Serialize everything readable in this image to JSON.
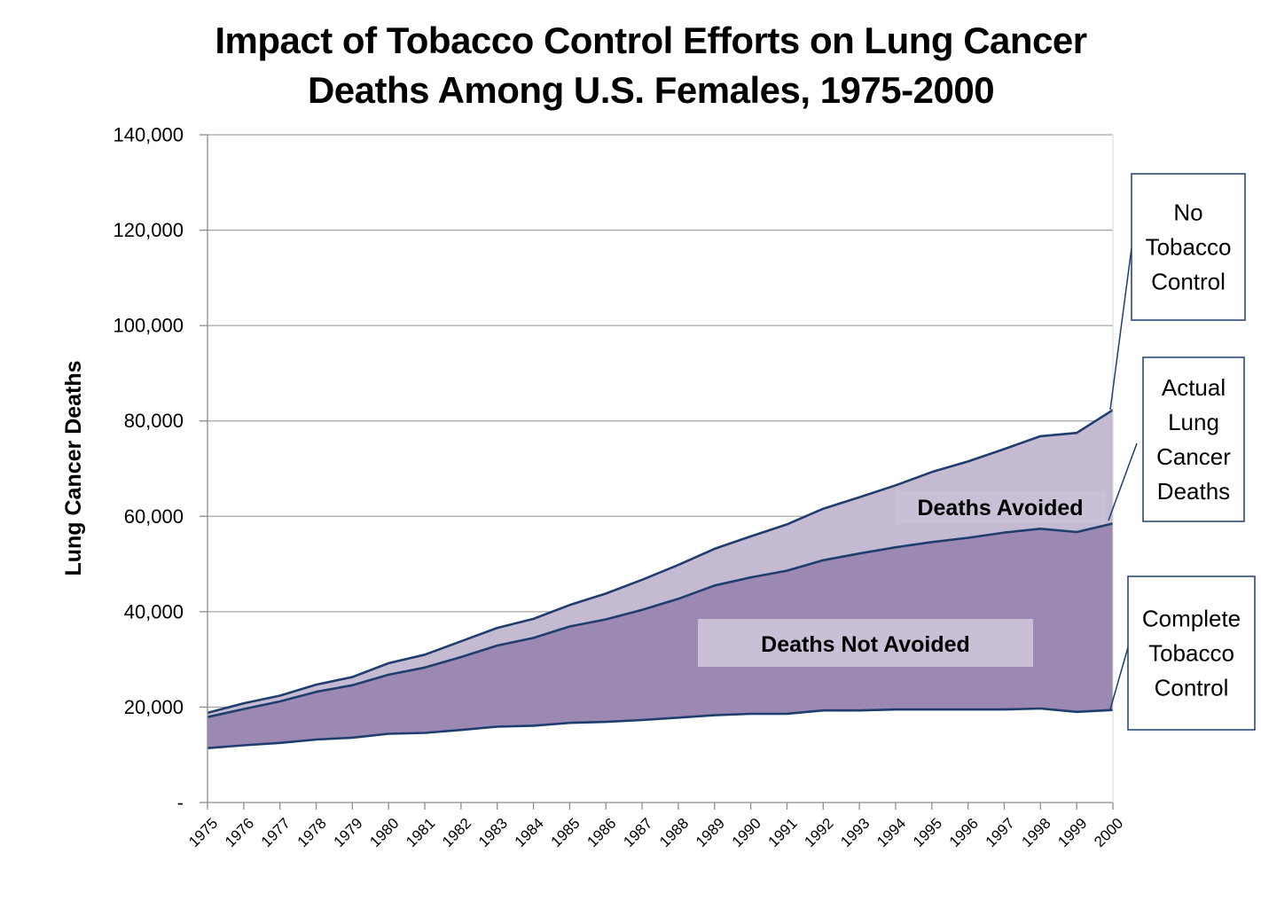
{
  "chart_data": {
    "type": "area",
    "title": [
      "Impact of Tobacco Control Efforts on Lung Cancer",
      "Deaths Among U.S. Females, 1975-2000"
    ],
    "xlabel": "",
    "ylabel": "Lung Cancer Deaths",
    "ylim": [
      0,
      140000
    ],
    "yticks": [
      0,
      20000,
      40000,
      60000,
      80000,
      100000,
      120000,
      140000
    ],
    "ytick_labels": [
      "-",
      "20,000",
      "40,000",
      "60,000",
      "80,000",
      "100,000",
      "120,000",
      "140,000"
    ],
    "grid": true,
    "categories": [
      "1975",
      "1976",
      "1977",
      "1978",
      "1979",
      "1980",
      "1981",
      "1982",
      "1983",
      "1984",
      "1985",
      "1986",
      "1987",
      "1988",
      "1989",
      "1990",
      "1991",
      "1992",
      "1993",
      "1994",
      "1995",
      "1996",
      "1997",
      "1998",
      "1999",
      "2000"
    ],
    "series": [
      {
        "name": "No Tobacco Control",
        "values": [
          18800,
          20800,
          22400,
          24700,
          26300,
          29200,
          31000,
          33800,
          36600,
          38500,
          41400,
          43800,
          46700,
          49800,
          53200,
          55800,
          58300,
          61600,
          64000,
          66500,
          69300,
          71500,
          74100,
          76800,
          77500,
          82300
        ]
      },
      {
        "name": "Actual Lung Cancer Deaths",
        "values": [
          17900,
          19600,
          21200,
          23200,
          24600,
          26800,
          28300,
          30500,
          32900,
          34500,
          36900,
          38400,
          40400,
          42700,
          45500,
          47200,
          48600,
          50800,
          52200,
          53500,
          54600,
          55500,
          56600,
          57400,
          56700,
          58500
        ]
      },
      {
        "name": "Complete Tobacco Control",
        "values": [
          11400,
          12000,
          12500,
          13200,
          13600,
          14400,
          14600,
          15200,
          15900,
          16100,
          16700,
          16900,
          17300,
          17800,
          18300,
          18600,
          18600,
          19300,
          19300,
          19500,
          19500,
          19500,
          19500,
          19700,
          19000,
          19400
        ]
      }
    ],
    "region_labels": {
      "avoided": "Deaths Avoided",
      "not_avoided": "Deaths Not Avoided"
    },
    "annotations": [
      {
        "series": "No Tobacco Control",
        "lines": [
          "No",
          "Tobacco",
          "Control"
        ]
      },
      {
        "series": "Actual Lung Cancer Deaths",
        "lines": [
          "Actual",
          "Lung",
          "Cancer",
          "Deaths"
        ]
      },
      {
        "series": "Complete Tobacco Control",
        "lines": [
          "Complete",
          "Tobacco",
          "Control"
        ]
      }
    ],
    "colors": {
      "avoided_fill": "#c4bbd2",
      "not_avoided_fill": "#9b89b3",
      "line": "#1f3e6d",
      "label_bg": "#c9bfd7",
      "grid": "#a6a6a6",
      "axis": "#8c8c8c"
    }
  }
}
